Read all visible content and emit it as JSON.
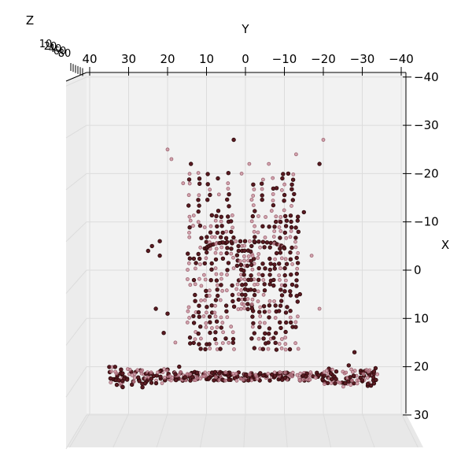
{
  "chart_data": {
    "type": "scatter",
    "projection": "3d",
    "view": "top-down (looking along -Z)",
    "xlabel": "X",
    "ylabel": "Y",
    "zlabel": "Z",
    "xlim": [
      -40,
      30
    ],
    "ylim": [
      -40,
      40
    ],
    "x_ticks": [
      "−40",
      "−30",
      "−20",
      "−10",
      "0",
      "10",
      "20",
      "30"
    ],
    "y_ticks": [
      "40",
      "30",
      "20",
      "10",
      "0",
      "−10",
      "−20",
      "−30",
      "−40"
    ],
    "z_ticks_visible": [
      "10",
      "20",
      "40",
      "60",
      "80"
    ],
    "grid": true,
    "pane_color": "#f2f2f2",
    "marker_face": "#c98a98",
    "marker_edge": "#2a0a0a",
    "point_cloud": {
      "description_shape": "Two vertical tower-like columns of points joined in the middle, standing on a wide horizontal base band",
      "left_column_y_range": [
        15,
        2
      ],
      "right_column_y_range": [
        -2,
        -15
      ],
      "columns_x_range": [
        -22,
        17
      ],
      "base_band_x_range": [
        18,
        25
      ],
      "base_band_y_range": [
        35,
        -35
      ]
    }
  }
}
